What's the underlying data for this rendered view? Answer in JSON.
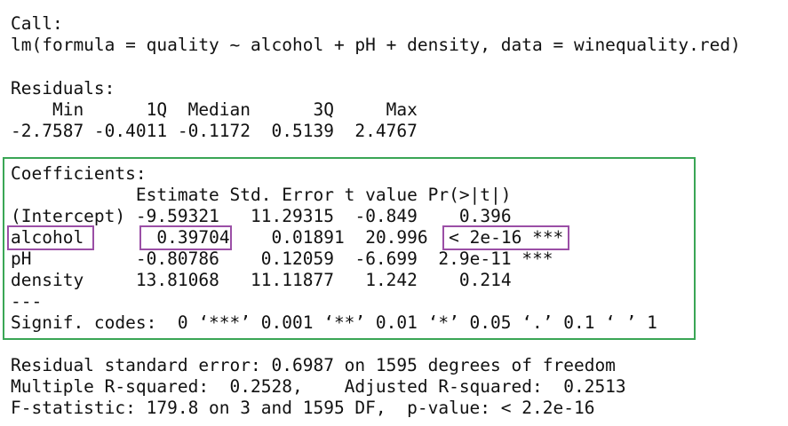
{
  "call": {
    "label": "Call:",
    "formula": "lm(formula = quality ~ alcohol + pH + density, data = winequality.red)"
  },
  "residuals": {
    "label": "Residuals:",
    "header": "    Min      1Q  Median      3Q     Max ",
    "values": "-2.7587 -0.4011 -0.1172  0.5139  2.4767 "
  },
  "coefficients": {
    "label": "Coefficients:",
    "header": "            Estimate Std. Error t value Pr(>|t|)    ",
    "rows": [
      {
        "name": "(Intercept)",
        "estimate": "-9.59321",
        "std_error": "11.29315",
        "t_value": "-0.849",
        "p_value": "0.396",
        "signif": ""
      },
      {
        "name": "alcohol",
        "estimate": "0.39704",
        "std_error": "0.01891",
        "t_value": "20.996",
        "p_value": "< 2e-16",
        "signif": "***"
      },
      {
        "name": "pH",
        "estimate": "-0.80786",
        "std_error": "0.12059",
        "t_value": "-6.699",
        "p_value": "2.9e-11",
        "signif": "***"
      },
      {
        "name": "density",
        "estimate": "13.81068",
        "std_error": "11.11877",
        "t_value": "1.242",
        "p_value": "0.214",
        "signif": ""
      }
    ],
    "separator": "---",
    "signif_codes": "Signif. codes:  0 ‘***’ 0.001 ‘**’ 0.01 ‘*’ 0.05 ‘.’ 0.1 ‘ ’ 1"
  },
  "summary": {
    "rse": "Residual standard error: 0.6987 on 1595 degrees of freedom",
    "r_squared": "Multiple R-squared:  0.2528,    Adjusted R-squared:  0.2513 ",
    "f_stat": "F-statistic: 179.8 on 3 and 1595 DF,  p-value: < 2.2e-16"
  },
  "highlight_colors": {
    "coefficients_box": "#3aa655",
    "alcohol_boxes": "#9b4fa6"
  }
}
